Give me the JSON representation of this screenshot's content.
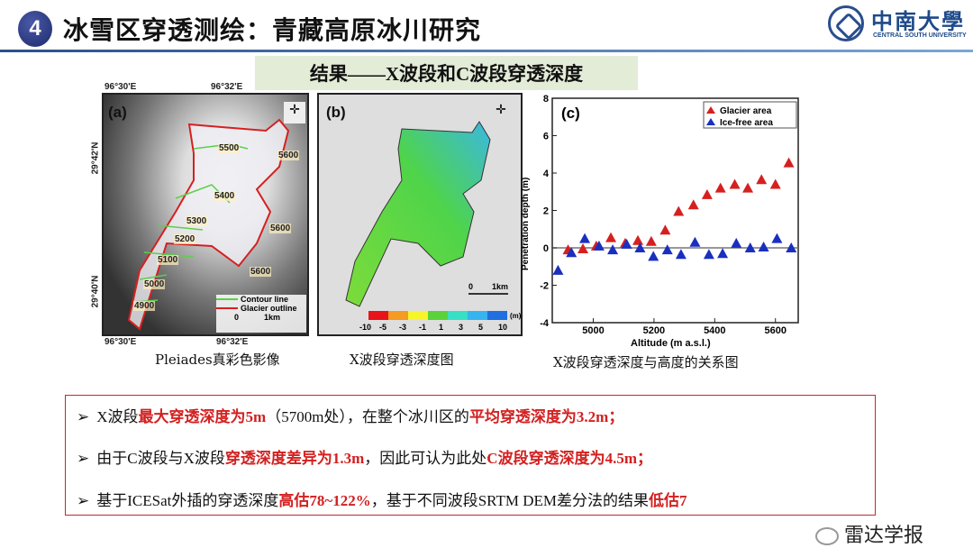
{
  "header": {
    "number": "4",
    "title": "冰雪区穿透测绘：青藏高原冰川研究",
    "logo_cn": "中南大學",
    "logo_en": "CENTRAL SOUTH UNIVERSITY"
  },
  "subtitle": "结果——X波段和C波段穿透深度",
  "panel_a": {
    "label": "(a)",
    "lon_left": "96°30'E",
    "lon_right": "96°32'E",
    "lat_top": "29°42'N",
    "lat_bottom": "29°40'N",
    "contours": [
      "5500",
      "5600",
      "5400",
      "5300",
      "5200",
      "5600",
      "5100",
      "5600",
      "5000",
      "4900"
    ],
    "legend": [
      "Contour line",
      "Glacier outline"
    ],
    "scale": [
      "0",
      "1km"
    ],
    "caption": "Pleiades真彩色影像",
    "colors": {
      "contour": "#5ccf4a",
      "outline": "#d62020"
    }
  },
  "panel_b": {
    "label": "(b)",
    "scale": [
      "0",
      "1km"
    ],
    "colorbar_ticks": [
      "-10",
      "-5",
      "-3",
      "-1",
      "1",
      "3",
      "5",
      "10"
    ],
    "colorbar_unit": "(m)",
    "colorbar_colors": [
      "#e8141a",
      "#f59a22",
      "#f6f52a",
      "#5ad23a",
      "#36e0c4",
      "#35b4ef",
      "#1f6fe0"
    ],
    "caption": "X波段穿透深度图"
  },
  "chart_data": {
    "type": "scatter",
    "label": "(c)",
    "xlabel": "Altitude (m a.s.l.)",
    "ylabel": "Penetration depth (m)",
    "xlim": [
      4865,
      5675
    ],
    "ylim": [
      -4,
      8
    ],
    "xticks": [
      5000,
      5200,
      5400,
      5600
    ],
    "yticks": [
      -4,
      -2,
      0,
      2,
      4,
      6,
      8
    ],
    "legend_position": "top-right",
    "zero_line": true,
    "caption": "X波段穿透深度与高度的关系图",
    "series": [
      {
        "name": "Glacier area",
        "color": "#d62020",
        "x": [
          4917,
          4966,
          5010,
          5058,
          5105,
          5147,
          5191,
          5237,
          5281,
          5330,
          5375,
          5419,
          5466,
          5509,
          5554,
          5600,
          5644
        ],
        "y": [
          -0.1,
          -0.05,
          0.1,
          0.55,
          0.25,
          0.4,
          0.35,
          0.95,
          1.95,
          2.3,
          2.85,
          3.2,
          3.4,
          3.2,
          3.65,
          3.4,
          4.55
        ]
      },
      {
        "name": "Ice-free area",
        "color": "#1a2fbf",
        "x": [
          4884,
          4928,
          4972,
          5019,
          5064,
          5110,
          5154,
          5198,
          5244,
          5289,
          5335,
          5381,
          5426,
          5471,
          5517,
          5561,
          5605,
          5652
        ],
        "y": [
          -1.2,
          -0.25,
          0.5,
          0.1,
          -0.1,
          0.2,
          0,
          -0.45,
          -0.1,
          -0.35,
          0.3,
          -0.35,
          -0.3,
          0.25,
          0,
          0.05,
          0.5,
          0
        ]
      }
    ]
  },
  "bullets": [
    [
      {
        "t": "X波段"
      },
      {
        "t": "最大穿透深度为5m",
        "r": 1
      },
      {
        "t": "（5700m处），在整个冰川区的"
      },
      {
        "t": "平均穿透深度为3.2m；",
        "r": 1
      }
    ],
    [
      {
        "t": "由于C波段与X波段"
      },
      {
        "t": "穿透深度差异为1.3m",
        "r": 1
      },
      {
        "t": "，因此可认为此处"
      },
      {
        "t": "C波段穿透深度为4.5m；",
        "r": 1
      }
    ],
    [
      {
        "t": "基于ICESat外插的穿透深度"
      },
      {
        "t": "高估78~122%",
        "r": 1
      },
      {
        "t": "，基于不同波段SRTM DEM差分法的结果"
      },
      {
        "t": "低估7",
        "r": 1
      }
    ]
  ],
  "bullet_marker": "➢",
  "watermark": "雷达学报"
}
